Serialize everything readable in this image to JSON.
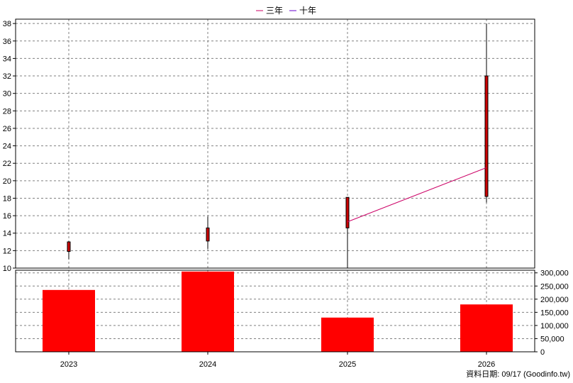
{
  "legend": [
    {
      "label": "三年",
      "color": "#cc0066"
    },
    {
      "label": "十年",
      "color": "#6600cc"
    }
  ],
  "footer": {
    "source": "資料日期: 09/17  (Goodinfo.tw)"
  },
  "chart_data": [
    {
      "type": "candlestick",
      "categories": [
        "2023",
        "2024",
        "2025",
        "2026"
      ],
      "ylim": [
        10,
        38.5
      ],
      "yticks": [
        10,
        12,
        14,
        16,
        18,
        20,
        22,
        24,
        26,
        28,
        30,
        32,
        34,
        36,
        38
      ],
      "grid": true,
      "candles": [
        {
          "x": "2023",
          "open": 11.9,
          "close": 13.0,
          "high": 13.1,
          "low": 11.0
        },
        {
          "x": "2024",
          "open": 13.1,
          "close": 14.6,
          "high": 15.9,
          "low": 12.2
        },
        {
          "x": "2025",
          "open": 14.6,
          "close": 18.1,
          "high": 18.1,
          "low": 10.0
        },
        {
          "x": "2026",
          "open": 18.2,
          "close": 32.0,
          "high": 38.0,
          "low": 17.5
        }
      ],
      "series": [
        {
          "name": "三年",
          "color": "#cc0066",
          "points": [
            {
              "x": "2025",
              "y": 15.3
            },
            {
              "x": "2026",
              "y": 21.5
            }
          ]
        },
        {
          "name": "十年",
          "color": "#6600cc",
          "points": []
        }
      ]
    },
    {
      "type": "bar",
      "categories": [
        "2023",
        "2024",
        "2025",
        "2026"
      ],
      "values": [
        235000,
        305000,
        130000,
        180000
      ],
      "ylim": [
        0,
        310000
      ],
      "yticks": [
        {
          "value": 0,
          "label": "0"
        },
        {
          "value": 50000,
          "label": "50,000"
        },
        {
          "value": 100000,
          "label": "100,000"
        },
        {
          "value": 150000,
          "label": "150,000"
        },
        {
          "value": 200000,
          "label": "200,000"
        },
        {
          "value": 250000,
          "label": "250,000"
        },
        {
          "value": 300000,
          "label": "300,000"
        }
      ],
      "color": "#ff0000",
      "grid": true
    }
  ]
}
